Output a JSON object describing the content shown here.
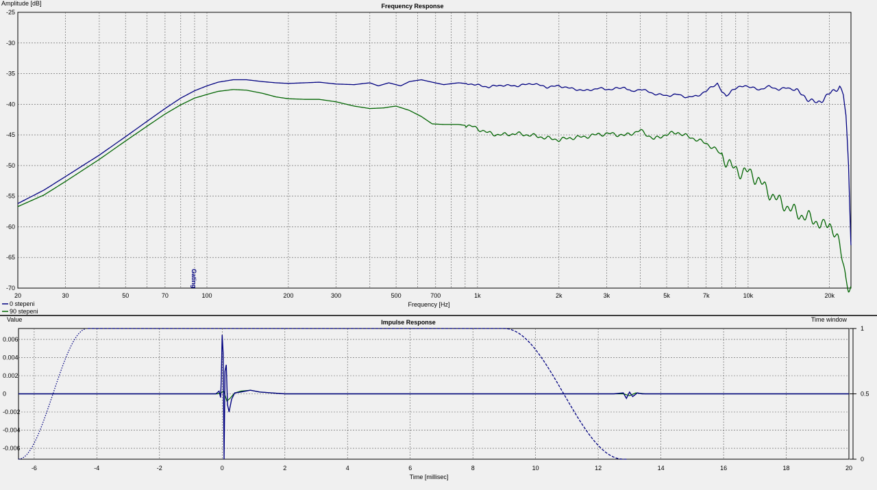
{
  "chart_data": [
    {
      "type": "line",
      "title": "Frequency Response",
      "ylabel": "Amplitude [dB]",
      "xlabel": "Frequency [Hz]",
      "x_scale": "log",
      "xlim": [
        20,
        24000
      ],
      "ylim": [
        -70,
        -25
      ],
      "grid": true,
      "x_ticks": [
        {
          "v": 20,
          "label": "20"
        },
        {
          "v": 30,
          "label": "30"
        },
        {
          "v": 50,
          "label": "50"
        },
        {
          "v": 70,
          "label": "70"
        },
        {
          "v": 100,
          "label": "100"
        },
        {
          "v": 200,
          "label": "200"
        },
        {
          "v": 300,
          "label": "300"
        },
        {
          "v": 500,
          "label": "500"
        },
        {
          "v": 700,
          "label": "700"
        },
        {
          "v": 1000,
          "label": "1k"
        },
        {
          "v": 2000,
          "label": "2k"
        },
        {
          "v": 3000,
          "label": "3k"
        },
        {
          "v": 5000,
          "label": "5k"
        },
        {
          "v": 7000,
          "label": "7k"
        },
        {
          "v": 10000,
          "label": "10k"
        },
        {
          "v": 20000,
          "label": "20k"
        }
      ],
      "y_ticks": [
        -25,
        -30,
        -35,
        -40,
        -45,
        -50,
        -55,
        -60,
        -65,
        -70
      ],
      "marker": {
        "x": 88,
        "label": "Gating"
      },
      "legend_position": "bottom-left",
      "series": [
        {
          "name": "0 stepeni",
          "color": "#000080",
          "points": [
            [
              20,
              -56.2
            ],
            [
              25,
              -54.0
            ],
            [
              30,
              -51.8
            ],
            [
              40,
              -48.3
            ],
            [
              50,
              -45.3
            ],
            [
              60,
              -42.8
            ],
            [
              70,
              -40.7
            ],
            [
              80,
              -39.0
            ],
            [
              90,
              -37.8
            ],
            [
              100,
              -37.0
            ],
            [
              110,
              -36.4
            ],
            [
              125,
              -36.0
            ],
            [
              140,
              -36.0
            ],
            [
              160,
              -36.3
            ],
            [
              180,
              -36.5
            ],
            [
              200,
              -36.6
            ],
            [
              230,
              -36.5
            ],
            [
              260,
              -36.4
            ],
            [
              300,
              -36.7
            ],
            [
              350,
              -36.8
            ],
            [
              400,
              -36.5
            ],
            [
              430,
              -37.0
            ],
            [
              470,
              -36.5
            ],
            [
              520,
              -37.0
            ],
            [
              560,
              -36.3
            ],
            [
              620,
              -36.0
            ],
            [
              680,
              -36.4
            ],
            [
              750,
              -36.8
            ],
            [
              850,
              -36.5
            ],
            [
              950,
              -36.7
            ],
            [
              1100,
              -37.2
            ],
            [
              1200,
              -36.9
            ],
            [
              1400,
              -37.0
            ],
            [
              1600,
              -36.6
            ],
            [
              1800,
              -37.2
            ],
            [
              2000,
              -37.0
            ],
            [
              2200,
              -37.4
            ],
            [
              2500,
              -37.8
            ],
            [
              2800,
              -37.4
            ],
            [
              3100,
              -37.6
            ],
            [
              3500,
              -37.2
            ],
            [
              3700,
              -38.0
            ],
            [
              4000,
              -37.5
            ],
            [
              4500,
              -38.3
            ],
            [
              5000,
              -38.6
            ],
            [
              5500,
              -38.4
            ],
            [
              6000,
              -38.9
            ],
            [
              6500,
              -38.6
            ],
            [
              7000,
              -37.9
            ],
            [
              7300,
              -37.2
            ],
            [
              7700,
              -36.6
            ],
            [
              8000,
              -38.0
            ],
            [
              8300,
              -38.7
            ],
            [
              8700,
              -37.7
            ],
            [
              9200,
              -37.3
            ],
            [
              9700,
              -36.9
            ],
            [
              10300,
              -37.3
            ],
            [
              11000,
              -37.6
            ],
            [
              12000,
              -37.1
            ],
            [
              13000,
              -37.6
            ],
            [
              14000,
              -37.3
            ],
            [
              15000,
              -37.7
            ],
            [
              16000,
              -38.6
            ],
            [
              17000,
              -39.4
            ],
            [
              18000,
              -39.8
            ],
            [
              19000,
              -39.1
            ],
            [
              20000,
              -38.3
            ],
            [
              21000,
              -37.6
            ],
            [
              21800,
              -37.1
            ],
            [
              22500,
              -38.5
            ],
            [
              23000,
              -42.0
            ],
            [
              23500,
              -50.0
            ],
            [
              24000,
              -63.0
            ]
          ]
        },
        {
          "name": "90 stepeni",
          "color": "#006400",
          "points": [
            [
              20,
              -56.7
            ],
            [
              25,
              -54.8
            ],
            [
              30,
              -52.6
            ],
            [
              40,
              -49.0
            ],
            [
              50,
              -46.0
            ],
            [
              60,
              -43.6
            ],
            [
              70,
              -41.6
            ],
            [
              80,
              -40.1
            ],
            [
              90,
              -39.0
            ],
            [
              100,
              -38.4
            ],
            [
              110,
              -37.9
            ],
            [
              125,
              -37.6
            ],
            [
              140,
              -37.7
            ],
            [
              160,
              -38.2
            ],
            [
              180,
              -38.8
            ],
            [
              200,
              -39.1
            ],
            [
              230,
              -39.2
            ],
            [
              260,
              -39.2
            ],
            [
              300,
              -39.6
            ],
            [
              350,
              -40.3
            ],
            [
              400,
              -40.7
            ],
            [
              450,
              -40.6
            ],
            [
              480,
              -40.4
            ],
            [
              500,
              -40.3
            ],
            [
              560,
              -41.0
            ],
            [
              620,
              -42.0
            ],
            [
              680,
              -43.2
            ],
            [
              750,
              -43.3
            ],
            [
              850,
              -43.3
            ],
            [
              950,
              -43.6
            ],
            [
              1100,
              -44.7
            ],
            [
              1200,
              -45.0
            ],
            [
              1400,
              -44.8
            ],
            [
              1600,
              -45.1
            ],
            [
              1800,
              -45.5
            ],
            [
              2000,
              -45.8
            ],
            [
              2200,
              -45.5
            ],
            [
              2500,
              -45.3
            ],
            [
              2800,
              -44.9
            ],
            [
              3100,
              -44.8
            ],
            [
              3500,
              -45.1
            ],
            [
              4000,
              -44.3
            ],
            [
              4500,
              -45.7
            ],
            [
              5000,
              -44.9
            ],
            [
              5500,
              -44.6
            ],
            [
              6000,
              -45.3
            ],
            [
              6500,
              -45.8
            ],
            [
              7000,
              -46.4
            ],
            [
              7500,
              -47.2
            ],
            [
              8000,
              -48.3
            ],
            [
              8500,
              -49.8
            ],
            [
              9000,
              -50.7
            ],
            [
              9500,
              -51.1
            ],
            [
              10000,
              -51.0
            ],
            [
              11000,
              -52.5
            ],
            [
              12000,
              -54.5
            ],
            [
              13000,
              -55.8
            ],
            [
              14000,
              -56.8
            ],
            [
              15000,
              -57.6
            ],
            [
              16000,
              -58.3
            ],
            [
              17000,
              -58.6
            ],
            [
              18000,
              -59.2
            ],
            [
              19000,
              -60.0
            ],
            [
              20000,
              -59.4
            ],
            [
              21000,
              -61.1
            ],
            [
              21800,
              -63.3
            ],
            [
              22500,
              -66.0
            ],
            [
              23000,
              -68.3
            ],
            [
              23500,
              -69.6
            ],
            [
              24000,
              -69.9
            ]
          ]
        }
      ]
    },
    {
      "type": "line",
      "title": "Impulse Response",
      "ylabel": "Value",
      "y2label": "Time window",
      "xlabel": "Time [millisec]",
      "xlim": [
        -6.5,
        20
      ],
      "ylim": [
        -0.0072,
        0.0072
      ],
      "y2lim": [
        0,
        1
      ],
      "grid": true,
      "x_ticks": [
        -6,
        -4,
        -2,
        0,
        2,
        4,
        6,
        8,
        10,
        12,
        14,
        16,
        18,
        20
      ],
      "y_ticks": [
        {
          "v": 0.006,
          "label": "0.006"
        },
        {
          "v": 0.004,
          "label": "0.004"
        },
        {
          "v": 0.002,
          "label": "0.002"
        },
        {
          "v": 0,
          "label": "0"
        },
        {
          "v": -0.002,
          "label": "-0.002"
        },
        {
          "v": -0.004,
          "label": "-0.004"
        },
        {
          "v": -0.006,
          "label": "-0.006"
        }
      ],
      "y2_ticks": [
        {
          "v": 1,
          "label": "1"
        },
        {
          "v": 0.5,
          "label": "0.5"
        },
        {
          "v": 0,
          "label": "0"
        }
      ],
      "window": {
        "color": "#000080",
        "rise_start": -6.5,
        "rise_end": -4.3,
        "fall_start": 9.0,
        "fall_end": 12.8
      },
      "series": [
        {
          "name": "0 stepeni",
          "color": "#000080",
          "points": [
            [
              -6.5,
              0
            ],
            [
              -0.2,
              0
            ],
            [
              -0.1,
              0.0003
            ],
            [
              -0.05,
              -0.0004
            ],
            [
              -0.03,
              0.0015
            ],
            [
              0.0,
              0.0065
            ],
            [
              0.03,
              0.0045
            ],
            [
              0.06,
              -0.0072
            ],
            [
              0.09,
              0.0025
            ],
            [
              0.13,
              0.0032
            ],
            [
              0.17,
              -0.0012
            ],
            [
              0.22,
              -0.002
            ],
            [
              0.3,
              -0.0006
            ],
            [
              0.4,
              0.0001
            ],
            [
              0.6,
              0.0002
            ],
            [
              0.9,
              0.0004
            ],
            [
              1.2,
              0.0002
            ],
            [
              1.6,
              0.0001
            ],
            [
              2.0,
              0.0
            ],
            [
              8.0,
              0.0
            ],
            [
              12.5,
              0.0
            ],
            [
              12.8,
              0.0001
            ],
            [
              12.9,
              -0.0005
            ],
            [
              13.0,
              0.0002
            ],
            [
              13.1,
              -0.0003
            ],
            [
              13.25,
              0.0001
            ],
            [
              13.4,
              0.0
            ],
            [
              20,
              0
            ]
          ]
        },
        {
          "name": "90 stepeni",
          "color": "#006400",
          "points": [
            [
              -6.5,
              0
            ],
            [
              -0.15,
              0
            ],
            [
              -0.05,
              0.0001
            ],
            [
              0.05,
              0.0003
            ],
            [
              0.15,
              -0.0008
            ],
            [
              0.25,
              -0.0005
            ],
            [
              0.4,
              0.0001
            ],
            [
              0.6,
              0.0003
            ],
            [
              0.9,
              0.0004
            ],
            [
              1.2,
              0.0002
            ],
            [
              1.6,
              0.0001
            ],
            [
              2.0,
              0.0
            ],
            [
              12.8,
              0.0
            ],
            [
              13.0,
              -0.0002
            ],
            [
              13.2,
              0.0001
            ],
            [
              13.5,
              0.0
            ],
            [
              20,
              0
            ]
          ]
        }
      ]
    }
  ]
}
